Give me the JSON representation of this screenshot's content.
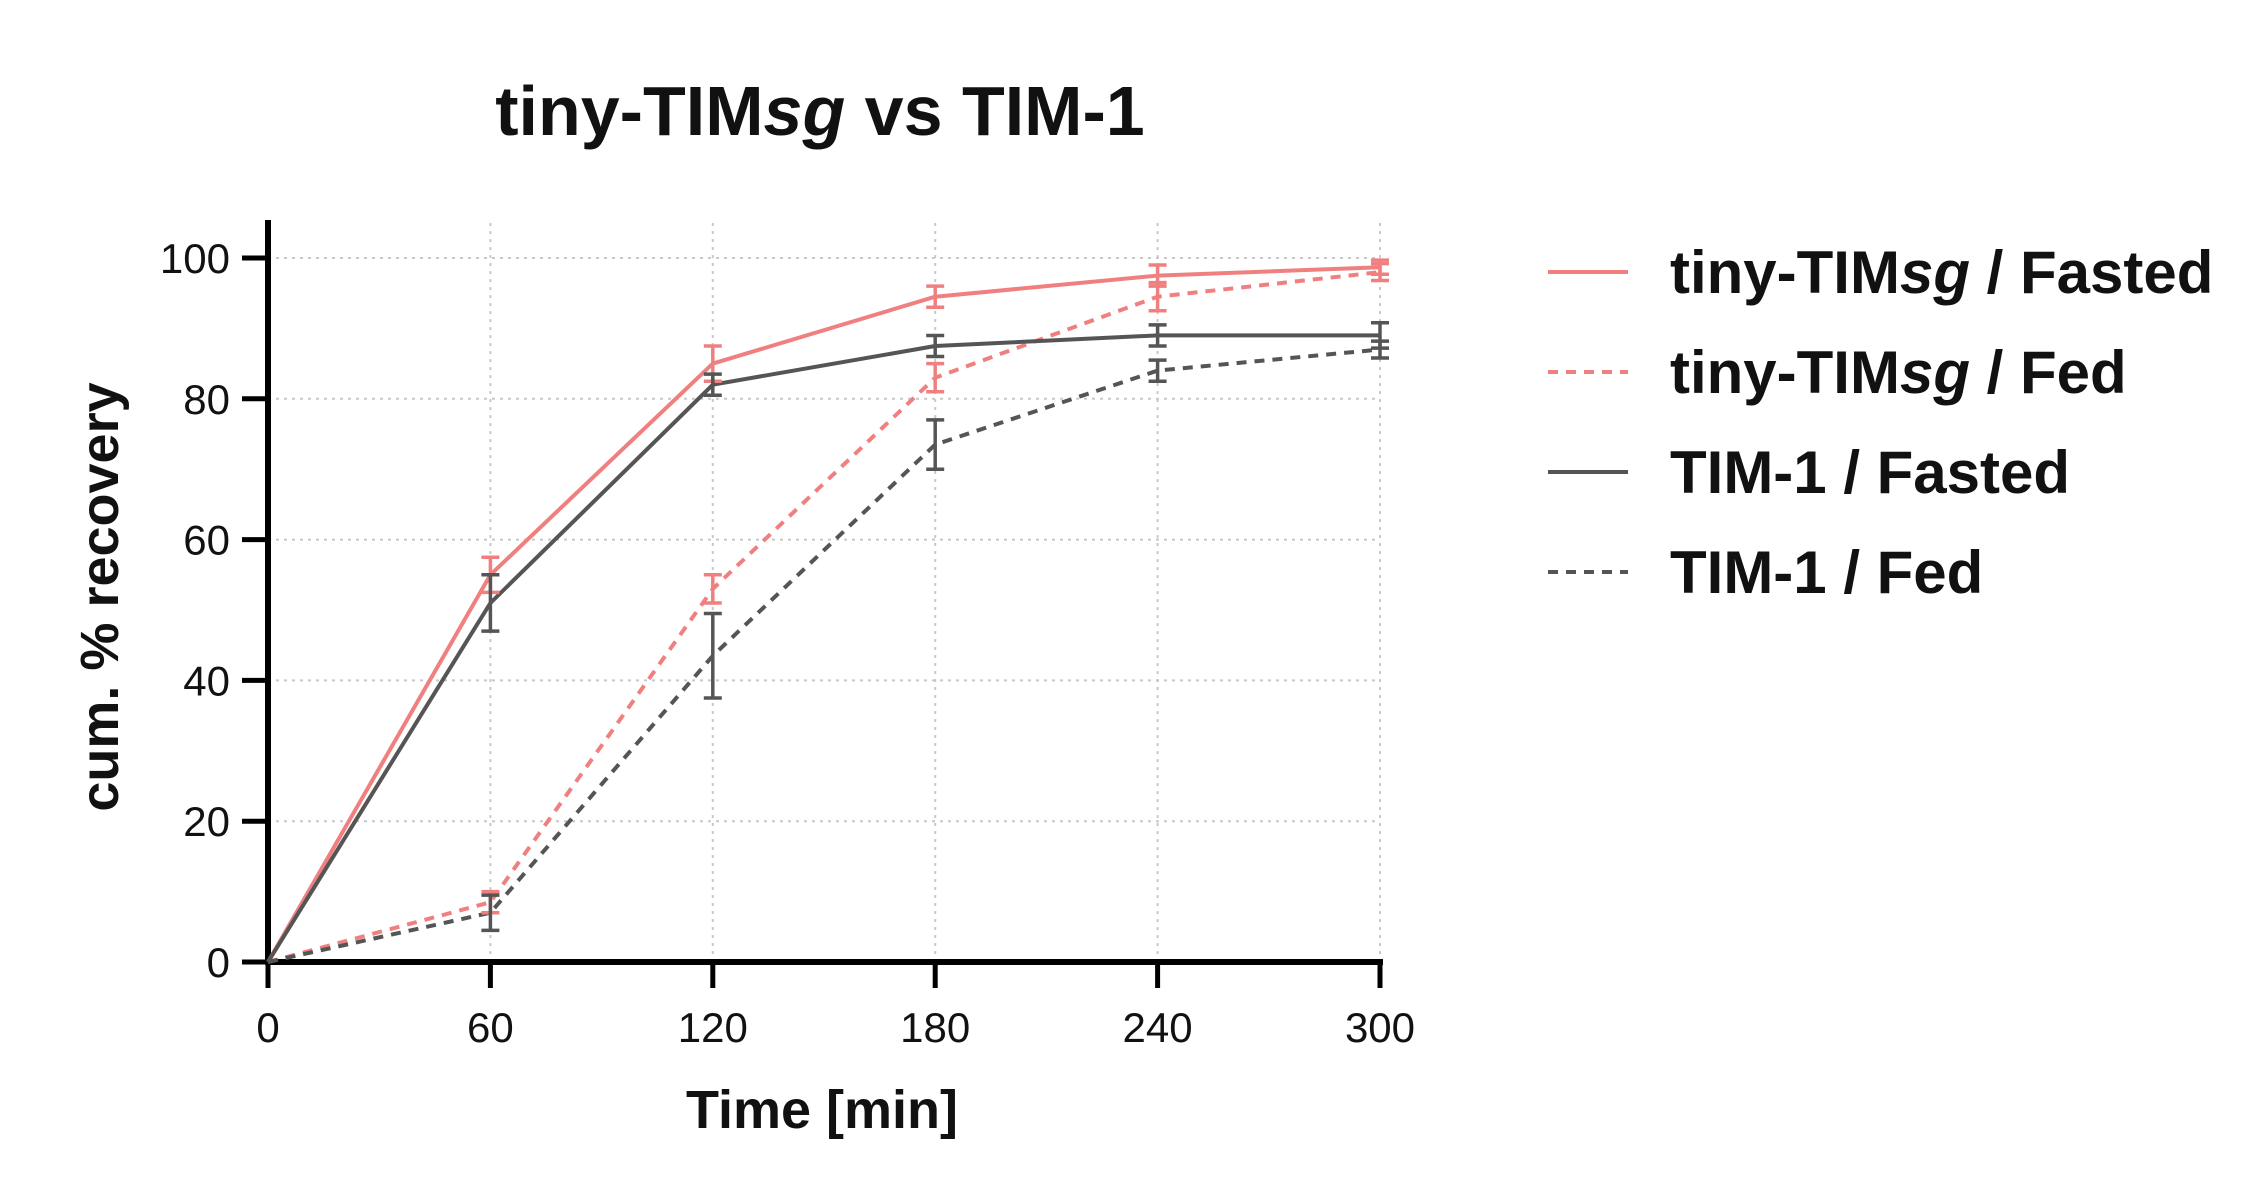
{
  "chart_data": {
    "type": "line",
    "title": "tiny-TIMsg vs TIM-1",
    "title_parts": [
      {
        "text": "tiny-TIM",
        "italic": false
      },
      {
        "text": "sg",
        "italic": true
      },
      {
        "text": " vs TIM-1",
        "italic": false
      }
    ],
    "xlabel": "Time [min]",
    "ylabel": "cum. % recovery",
    "x": [
      0,
      60,
      120,
      180,
      240,
      300
    ],
    "xlim": [
      0,
      300
    ],
    "ylim": [
      0,
      100
    ],
    "xticks": [
      0,
      60,
      120,
      180,
      240,
      300
    ],
    "yticks": [
      0,
      20,
      40,
      60,
      80,
      100
    ],
    "grid": true,
    "legend_position": "right",
    "series": [
      {
        "name": "tiny-TIMsg / Fasted",
        "name_parts": [
          {
            "text": "tiny-TIM",
            "italic": false
          },
          {
            "text": "sg",
            "italic": true
          },
          {
            "text": " / Fasted",
            "italic": false
          }
        ],
        "values": [
          0,
          55,
          85,
          94.5,
          97.5,
          98.7
        ],
        "errors": [
          0,
          2.5,
          2.5,
          1.5,
          1.5,
          1.0
        ],
        "color": "#f08080",
        "dash": "solid"
      },
      {
        "name": "tiny-TIMsg / Fed",
        "name_parts": [
          {
            "text": "tiny-TIM",
            "italic": false
          },
          {
            "text": "sg",
            "italic": true
          },
          {
            "text": " / Fed",
            "italic": false
          }
        ],
        "values": [
          0,
          8.5,
          53,
          83,
          94.5,
          98.0
        ],
        "errors": [
          0,
          1.5,
          2.0,
          2.0,
          2.0,
          1.2
        ],
        "color": "#f08080",
        "dash": "dashed"
      },
      {
        "name": "TIM-1 / Fasted",
        "name_parts": [
          {
            "text": "TIM-1 / Fasted",
            "italic": false
          }
        ],
        "values": [
          0,
          51,
          82,
          87.5,
          89,
          89
        ],
        "errors": [
          0,
          4.0,
          1.5,
          1.5,
          1.5,
          1.8
        ],
        "color": "#555555",
        "dash": "solid"
      },
      {
        "name": "TIM-1 / Fed",
        "name_parts": [
          {
            "text": "TIM-1 / Fed",
            "italic": false
          }
        ],
        "values": [
          0,
          7.0,
          43.5,
          73.5,
          84,
          87
        ],
        "errors": [
          0,
          2.5,
          6.0,
          3.5,
          1.5,
          1.2
        ],
        "color": "#555555",
        "dash": "dashed"
      }
    ]
  }
}
